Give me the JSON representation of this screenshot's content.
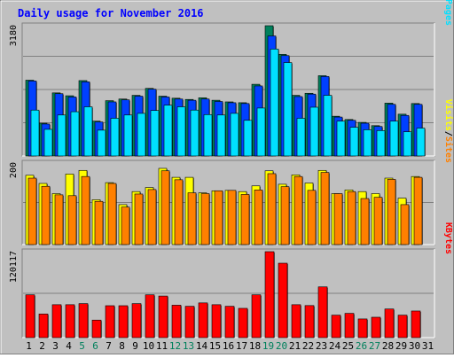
{
  "chart_data": [
    {
      "type": "bar",
      "title": "Daily usage for November 2016",
      "panel": "hits-files-pages",
      "categories": [
        "1",
        "2",
        "3",
        "4",
        "5",
        "6",
        "7",
        "8",
        "9",
        "10",
        "11",
        "12",
        "13",
        "14",
        "15",
        "16",
        "17",
        "18",
        "19",
        "20",
        "21",
        "22",
        "23",
        "24",
        "25",
        "26",
        "27",
        "28",
        "29",
        "30",
        "31"
      ],
      "weekend_days": [
        "5",
        "6",
        "12",
        "13",
        "19",
        "20",
        "26",
        "27"
      ],
      "ytick": "3180",
      "ymax": 3180,
      "legend": [
        {
          "name": "Hits",
          "color": "#00805c"
        },
        {
          "name": "Files",
          "color": "#0040ff"
        },
        {
          "name": "Pages",
          "color": "#00e0ff"
        }
      ],
      "series": [
        {
          "name": "Hits",
          "values": [
            1850,
            800,
            1540,
            1470,
            1840,
            850,
            1350,
            1390,
            1480,
            1650,
            1460,
            1410,
            1380,
            1420,
            1360,
            1320,
            1300,
            1750,
            3180,
            2480,
            1480,
            1530,
            1960,
            970,
            890,
            820,
            740,
            1290,
            1020,
            1280,
            null
          ]
        },
        {
          "name": "Files",
          "values": [
            1830,
            780,
            1520,
            1440,
            1810,
            830,
            1320,
            1370,
            1460,
            1630,
            1440,
            1390,
            1360,
            1390,
            1330,
            1300,
            1280,
            1710,
            2930,
            2450,
            1450,
            1510,
            1940,
            950,
            870,
            800,
            720,
            1260,
            990,
            1260,
            null
          ]
        },
        {
          "name": "Pages",
          "values": [
            1120,
            650,
            1000,
            1080,
            1200,
            630,
            920,
            1000,
            1040,
            1110,
            1240,
            1200,
            1120,
            1010,
            1000,
            1040,
            870,
            1170,
            2610,
            2280,
            920,
            1190,
            1480,
            850,
            700,
            640,
            620,
            850,
            590,
            680,
            null
          ]
        }
      ]
    },
    {
      "type": "bar",
      "panel": "visits-sites",
      "categories": [
        "1",
        "2",
        "3",
        "4",
        "5",
        "6",
        "7",
        "8",
        "9",
        "10",
        "11",
        "12",
        "13",
        "14",
        "15",
        "16",
        "17",
        "18",
        "19",
        "20",
        "21",
        "22",
        "23",
        "24",
        "25",
        "26",
        "27",
        "28",
        "29",
        "30",
        "31"
      ],
      "ytick": "200",
      "ymax": 200,
      "legend": [
        {
          "name": "Visits",
          "color": "#ffff00"
        },
        {
          "name": "Sites",
          "color": "#ff8000"
        }
      ],
      "series": [
        {
          "name": "Visits",
          "values": [
            170,
            150,
            125,
            173,
            182,
            110,
            152,
            98,
            130,
            140,
            187,
            165,
            165,
            127,
            132,
            133,
            130,
            144,
            181,
            148,
            171,
            151,
            182,
            125,
            134,
            130,
            125,
            163,
            114,
            167,
            null
          ]
        },
        {
          "name": "Sites",
          "values": [
            163,
            143,
            122,
            120,
            167,
            106,
            150,
            92,
            124,
            135,
            181,
            159,
            127,
            125,
            132,
            133,
            123,
            134,
            174,
            142,
            167,
            133,
            177,
            125,
            130,
            113,
            116,
            160,
            98,
            165,
            null
          ]
        }
      ]
    },
    {
      "type": "bar",
      "panel": "kbytes",
      "categories": [
        "1",
        "2",
        "3",
        "4",
        "5",
        "6",
        "7",
        "8",
        "9",
        "10",
        "11",
        "12",
        "13",
        "14",
        "15",
        "16",
        "17",
        "18",
        "19",
        "20",
        "21",
        "22",
        "23",
        "24",
        "25",
        "26",
        "27",
        "28",
        "29",
        "30",
        "31"
      ],
      "ytick": "120117",
      "ymax": 120117,
      "legend": [
        {
          "name": "KBytes",
          "color": "#ff0000"
        }
      ],
      "series": [
        {
          "name": "KBytes",
          "values": [
            59800,
            33000,
            46000,
            46000,
            47500,
            24500,
            44600,
            44600,
            47500,
            59800,
            58100,
            45300,
            43800,
            48500,
            46000,
            43800,
            40900,
            59800,
            120117,
            104000,
            46000,
            44800,
            70900,
            31400,
            33900,
            26100,
            28500,
            40000,
            31400,
            37200,
            null
          ]
        }
      ]
    }
  ]
}
